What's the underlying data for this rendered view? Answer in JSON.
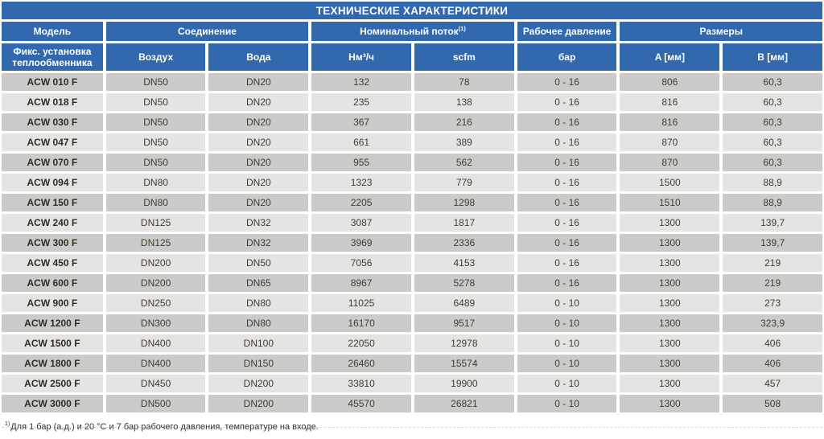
{
  "title": "ТЕХНИЧЕСКИЕ ХАРАКТЕРИСТИКИ",
  "header": {
    "model": "Модель",
    "connection": "Соединение",
    "flow": "Номинальный поток",
    "flow_sup": "(1)",
    "pressure": "Рабочее давление",
    "dimensions": "Размеры"
  },
  "subheader": {
    "model_sub": "Фикс. установка теплообменника",
    "air": "Воздух",
    "water": "Вода",
    "nm3h": "Нм³/ч",
    "scfm": "scfm",
    "bar": "бар",
    "a_mm": "A [мм]",
    "b_mm": "B [мм]"
  },
  "table": {
    "columns": [
      "model",
      "air_connection",
      "water_connection",
      "flow_nm3h",
      "flow_scfm",
      "pressure_bar",
      "dimension_a",
      "dimension_b"
    ],
    "rows": [
      [
        "ACW 010 F",
        "DN50",
        "DN20",
        "132",
        "78",
        "0 - 16",
        "806",
        "60,3"
      ],
      [
        "ACW 018 F",
        "DN50",
        "DN20",
        "235",
        "138",
        "0 - 16",
        "816",
        "60,3"
      ],
      [
        "ACW 030 F",
        "DN50",
        "DN20",
        "367",
        "216",
        "0 - 16",
        "816",
        "60,3"
      ],
      [
        "ACW 047 F",
        "DN50",
        "DN20",
        "661",
        "389",
        "0 - 16",
        "870",
        "60,3"
      ],
      [
        "ACW 070 F",
        "DN50",
        "DN20",
        "955",
        "562",
        "0 - 16",
        "870",
        "60,3"
      ],
      [
        "ACW 094 F",
        "DN80",
        "DN20",
        "1323",
        "779",
        "0 - 16",
        "1500",
        "88,9"
      ],
      [
        "ACW 150 F",
        "DN80",
        "DN20",
        "2205",
        "1298",
        "0 - 16",
        "1510",
        "88,9"
      ],
      [
        "ACW 240 F",
        "DN125",
        "DN32",
        "3087",
        "1817",
        "0 - 16",
        "1300",
        "139,7"
      ],
      [
        "ACW 300 F",
        "DN125",
        "DN32",
        "3969",
        "2336",
        "0 - 16",
        "1300",
        "139,7"
      ],
      [
        "ACW 450 F",
        "DN200",
        "DN50",
        "7056",
        "4153",
        "0 - 16",
        "1300",
        "219"
      ],
      [
        "ACW 600 F",
        "DN200",
        "DN65",
        "8967",
        "5278",
        "0 - 16",
        "1300",
        "219"
      ],
      [
        "ACW 900 F",
        "DN250",
        "DN80",
        "11025",
        "6489",
        "0 - 10",
        "1300",
        "273"
      ],
      [
        "ACW 1200 F",
        "DN300",
        "DN80",
        "16170",
        "9517",
        "0 - 10",
        "1300",
        "323,9"
      ],
      [
        "ACW 1500 F",
        "DN400",
        "DN100",
        "22050",
        "12978",
        "0 - 10",
        "1300",
        "406"
      ],
      [
        "ACW 1800 F",
        "DN400",
        "DN150",
        "26460",
        "15574",
        "0 - 10",
        "1300",
        "406"
      ],
      [
        "ACW 2500 F",
        "DN450",
        "DN200",
        "33810",
        "19900",
        "0 - 10",
        "1300",
        "457"
      ],
      [
        "ACW 3000 F",
        "DN500",
        "DN200",
        "45570",
        "26821",
        "0 - 10",
        "1300",
        "508"
      ]
    ]
  },
  "footnote": {
    "sup": "1)",
    "text": "Для 1 бар (а.д.) и 20 °C и 7 бар рабочего давления, температуре на входе."
  },
  "colors": {
    "header_blue": "#3268ae",
    "row_dark": "#cbcbca",
    "row_light": "#e4e4e3",
    "header_text": "#ffffff",
    "body_text": "#443c33"
  }
}
